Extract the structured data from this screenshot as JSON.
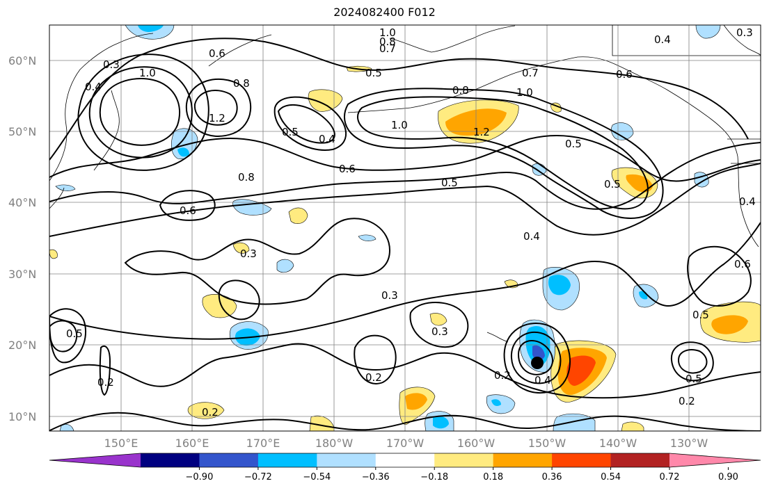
{
  "title": "2024082400 F012",
  "map": {
    "lat_labels": [
      "10°N",
      "20°N",
      "30°N",
      "40°N",
      "50°N",
      "60°N"
    ],
    "lon_labels": [
      "150°E",
      "160°E",
      "170°E",
      "180°W",
      "170°W",
      "160°W",
      "150°W",
      "140°W",
      "130°W"
    ],
    "contour_labels": [
      "0.3",
      "0.4",
      "0.6",
      "1.0",
      "0.8",
      "1.2",
      "1.0",
      "0.8",
      "0.7",
      "0.5",
      "0.5",
      "0.7",
      "1.0",
      "0.8",
      "0.6",
      "0.4",
      "0.3",
      "1.2",
      "0.5",
      "0.4",
      "1.0",
      "0.6",
      "0.8",
      "0.6",
      "0.5",
      "0.5",
      "0.5",
      "0.4",
      "0.3",
      "0.3",
      "0.3",
      "0.2",
      "0.2",
      "0.2",
      "0.2",
      "0.2",
      "0.4",
      "0.5",
      "0.6",
      "0.4",
      "0.5"
    ]
  },
  "colorbar": {
    "colors": [
      "#9933cc",
      "#000080",
      "#3355cc",
      "#00bfff",
      "#b0e0ff",
      "#ffffff",
      "#ffeb80",
      "#ffa500",
      "#ff4500",
      "#b22222",
      "#ff88aa"
    ],
    "tick_labels": [
      "−0.90",
      "−0.72",
      "−0.54",
      "−0.36",
      "−0.18",
      "0.18",
      "0.36",
      "0.54",
      "0.72",
      "0.90"
    ]
  }
}
